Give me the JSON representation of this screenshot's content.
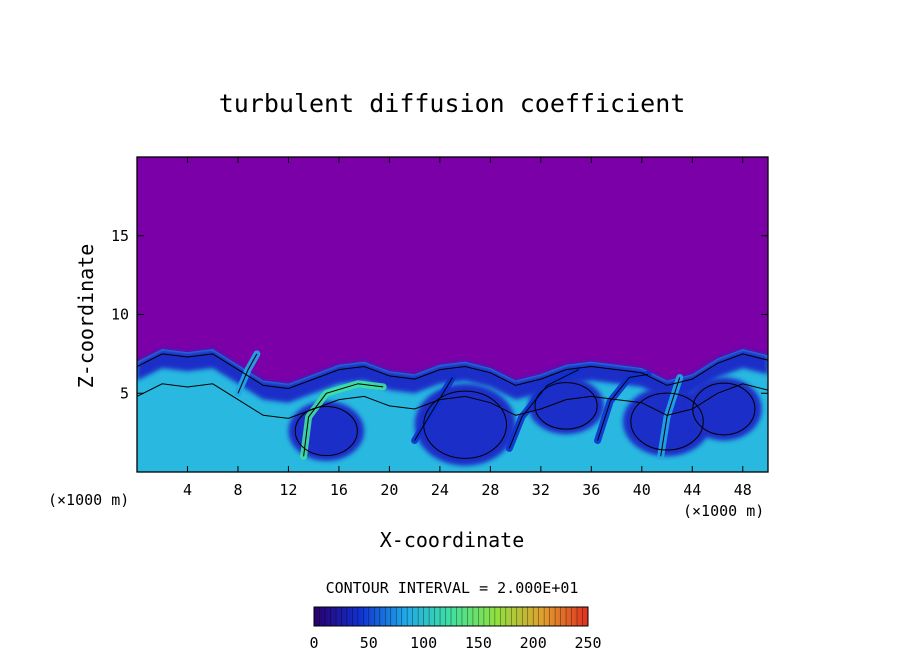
{
  "chart_data": {
    "type": "heatmap",
    "title": "turbulent diffusion coefficient",
    "xlabel": "X-coordinate",
    "ylabel": "Z-coordinate",
    "x_unit": "(×1000 m)",
    "z_unit": "(×1000 m)",
    "xlim": [
      0,
      50
    ],
    "ylim": [
      0,
      20
    ],
    "x_ticks": [
      4,
      8,
      12,
      16,
      20,
      24,
      28,
      32,
      36,
      40,
      44,
      48
    ],
    "y_ticks": [
      5,
      10,
      15
    ],
    "grid": false,
    "contour_interval_label": "CONTOUR INTERVAL = 2.000E+01",
    "contour_interval": 20,
    "background_value": 0,
    "colorbar": {
      "min": 0,
      "max": 250,
      "ticks": [
        0,
        50,
        100,
        150,
        200,
        250
      ],
      "placement": "bottom",
      "colors": [
        "#2a006a",
        "#1030d0",
        "#20a8e8",
        "#40e0a0",
        "#90e040",
        "#e0a030",
        "#e03020"
      ]
    },
    "colors": {
      "above_boundary_layer": "#7b00a8",
      "low_values": "#1f2ec8",
      "mid_values": "#28b8e0",
      "high_values": "#50e070",
      "contour_line": "#000000"
    },
    "boundary_layer_top": {
      "x": [
        0,
        2,
        4,
        6,
        8,
        10,
        12,
        14,
        16,
        18,
        20,
        22,
        24,
        26,
        28,
        30,
        32,
        34,
        36,
        38,
        40,
        42,
        44,
        46,
        48,
        50
      ],
      "z": [
        7.0,
        7.8,
        7.6,
        7.8,
        6.8,
        5.8,
        5.6,
        6.2,
        6.8,
        7.0,
        6.4,
        6.2,
        6.8,
        7.0,
        6.6,
        5.8,
        6.2,
        6.8,
        7.0,
        6.8,
        6.6,
        5.8,
        6.2,
        7.2,
        7.8,
        7.4
      ]
    },
    "cells": [
      {
        "x": 15,
        "z": 2.6,
        "rx": 3.0,
        "rz": 1.9,
        "value": 20
      },
      {
        "x": 26,
        "z": 3.0,
        "rx": 4.0,
        "rz": 2.6,
        "value": 20
      },
      {
        "x": 34,
        "z": 4.2,
        "rx": 3.0,
        "rz": 1.8,
        "value": 20
      },
      {
        "x": 42,
        "z": 3.2,
        "rx": 3.5,
        "rz": 2.2,
        "value": 20
      },
      {
        "x": 46.5,
        "z": 4.0,
        "rx": 3.0,
        "rz": 2.0,
        "value": 20
      }
    ],
    "plumes": [
      {
        "x": [
          13.2,
          13.6,
          15.0,
          17.5,
          19.5
        ],
        "z": [
          1.0,
          3.5,
          5.0,
          5.6,
          5.4
        ],
        "value": 120
      },
      {
        "x": [
          29.5,
          30.5,
          32.5,
          35.0
        ],
        "z": [
          1.5,
          3.5,
          5.5,
          6.5
        ],
        "value": 60
      },
      {
        "x": [
          36.5,
          37.5,
          39.0,
          40.5
        ],
        "z": [
          2.0,
          4.5,
          6.0,
          6.2
        ],
        "value": 60
      },
      {
        "x": [
          41.5,
          42.0,
          43.0
        ],
        "z": [
          1.0,
          3.5,
          6.0
        ],
        "value": 80
      },
      {
        "x": [
          8.0,
          8.8,
          9.5
        ],
        "z": [
          5.0,
          6.5,
          7.5
        ],
        "value": 80
      },
      {
        "x": [
          22.0,
          23.5,
          25.0
        ],
        "z": [
          2.0,
          4.0,
          6.0
        ],
        "value": 60
      }
    ]
  }
}
